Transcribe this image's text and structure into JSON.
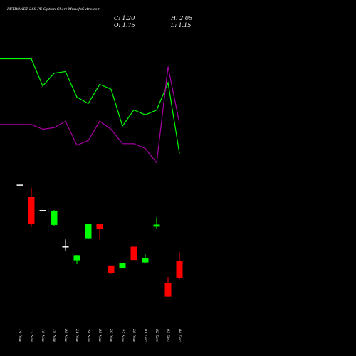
{
  "header": {
    "title": "PETRONET 268  PE Option  Chart MunafaSutra.com",
    "close": "C: 1.20",
    "open": "O: 1.75",
    "high": "H: 2.05",
    "low": "L: 1.15"
  },
  "colors": {
    "background": "#000000",
    "up": "#00ff00",
    "down": "#ff0000",
    "neutral": "#ffffff",
    "line_top": "#00ff00",
    "line_mid": "#aa00aa",
    "text": "#ffffff"
  },
  "chart_data": [
    {
      "type": "candlestick",
      "title": "",
      "categories": [
        "14 Nov",
        "17 Nov",
        "18 Nov",
        "19 Nov",
        "20 Nov",
        "21 Nov",
        "24 Nov",
        "25 Nov",
        "26 Nov",
        "27 Nov",
        "28 Nov",
        "01 Dec",
        "02 Dec",
        "03 Dec",
        "04 Dec"
      ],
      "ohlc": [
        {
          "date": "14 Nov",
          "open": 4.28,
          "high": 4.28,
          "low": 4.28,
          "close": 4.28,
          "color": "neutral"
        },
        {
          "date": "17 Nov",
          "open": 3.88,
          "high": 4.18,
          "low": 2.88,
          "close": 2.97,
          "color": "down"
        },
        {
          "date": "18 Nov",
          "open": 3.44,
          "high": 3.44,
          "low": 3.44,
          "close": 3.44,
          "color": "neutral"
        },
        {
          "date": "19 Nov",
          "open": 2.95,
          "high": 3.44,
          "low": 2.92,
          "close": 3.41,
          "color": "up"
        },
        {
          "date": "20 Nov",
          "open": 2.24,
          "high": 2.47,
          "low": 2.08,
          "close": 2.24,
          "color": "neutral"
        },
        {
          "date": "21 Nov",
          "open": 1.78,
          "high": 1.96,
          "low": 1.65,
          "close": 1.95,
          "color": "up"
        },
        {
          "date": "24 Nov",
          "open": 2.51,
          "high": 2.98,
          "low": 2.49,
          "close": 2.98,
          "color": "up"
        },
        {
          "date": "25 Nov",
          "open": 2.97,
          "high": 2.97,
          "low": 2.47,
          "close": 2.81,
          "color": "down"
        },
        {
          "date": "26 Nov",
          "open": 1.61,
          "high": 1.61,
          "low": 1.33,
          "close": 1.36,
          "color": "down"
        },
        {
          "date": "27 Nov",
          "open": 1.51,
          "high": 1.7,
          "low": 1.51,
          "close": 1.7,
          "color": "up"
        },
        {
          "date": "28 Nov",
          "open": 2.23,
          "high": 2.23,
          "low": 1.79,
          "close": 1.79,
          "color": "down"
        },
        {
          "date": "01 Dec",
          "open": 1.71,
          "high": 1.98,
          "low": 1.7,
          "close": 1.85,
          "color": "up"
        },
        {
          "date": "02 Dec",
          "open": 2.89,
          "high": 3.2,
          "low": 2.81,
          "close": 2.96,
          "color": "up"
        },
        {
          "date": "03 Dec",
          "open": 1.03,
          "high": 1.23,
          "low": 0.58,
          "close": 0.58,
          "color": "down"
        },
        {
          "date": "04 Dec",
          "open": 1.75,
          "high": 2.05,
          "low": 1.15,
          "close": 1.2,
          "color": "down"
        }
      ],
      "lines": [
        {
          "color": "#00ff00",
          "values": [
            9.0,
            9.0,
            7.3,
            8.1,
            8.2,
            6.6,
            6.2,
            7.4,
            7.1,
            4.8,
            5.8,
            5.5,
            5.8,
            7.5,
            3.1
          ]
        },
        {
          "color": "#aa00aa",
          "values": [
            4.9,
            4.9,
            4.6,
            4.7,
            5.1,
            3.6,
            3.9,
            5.1,
            4.6,
            3.7,
            3.7,
            3.4,
            2.5,
            8.5,
            5.0
          ]
        }
      ]
    }
  ]
}
